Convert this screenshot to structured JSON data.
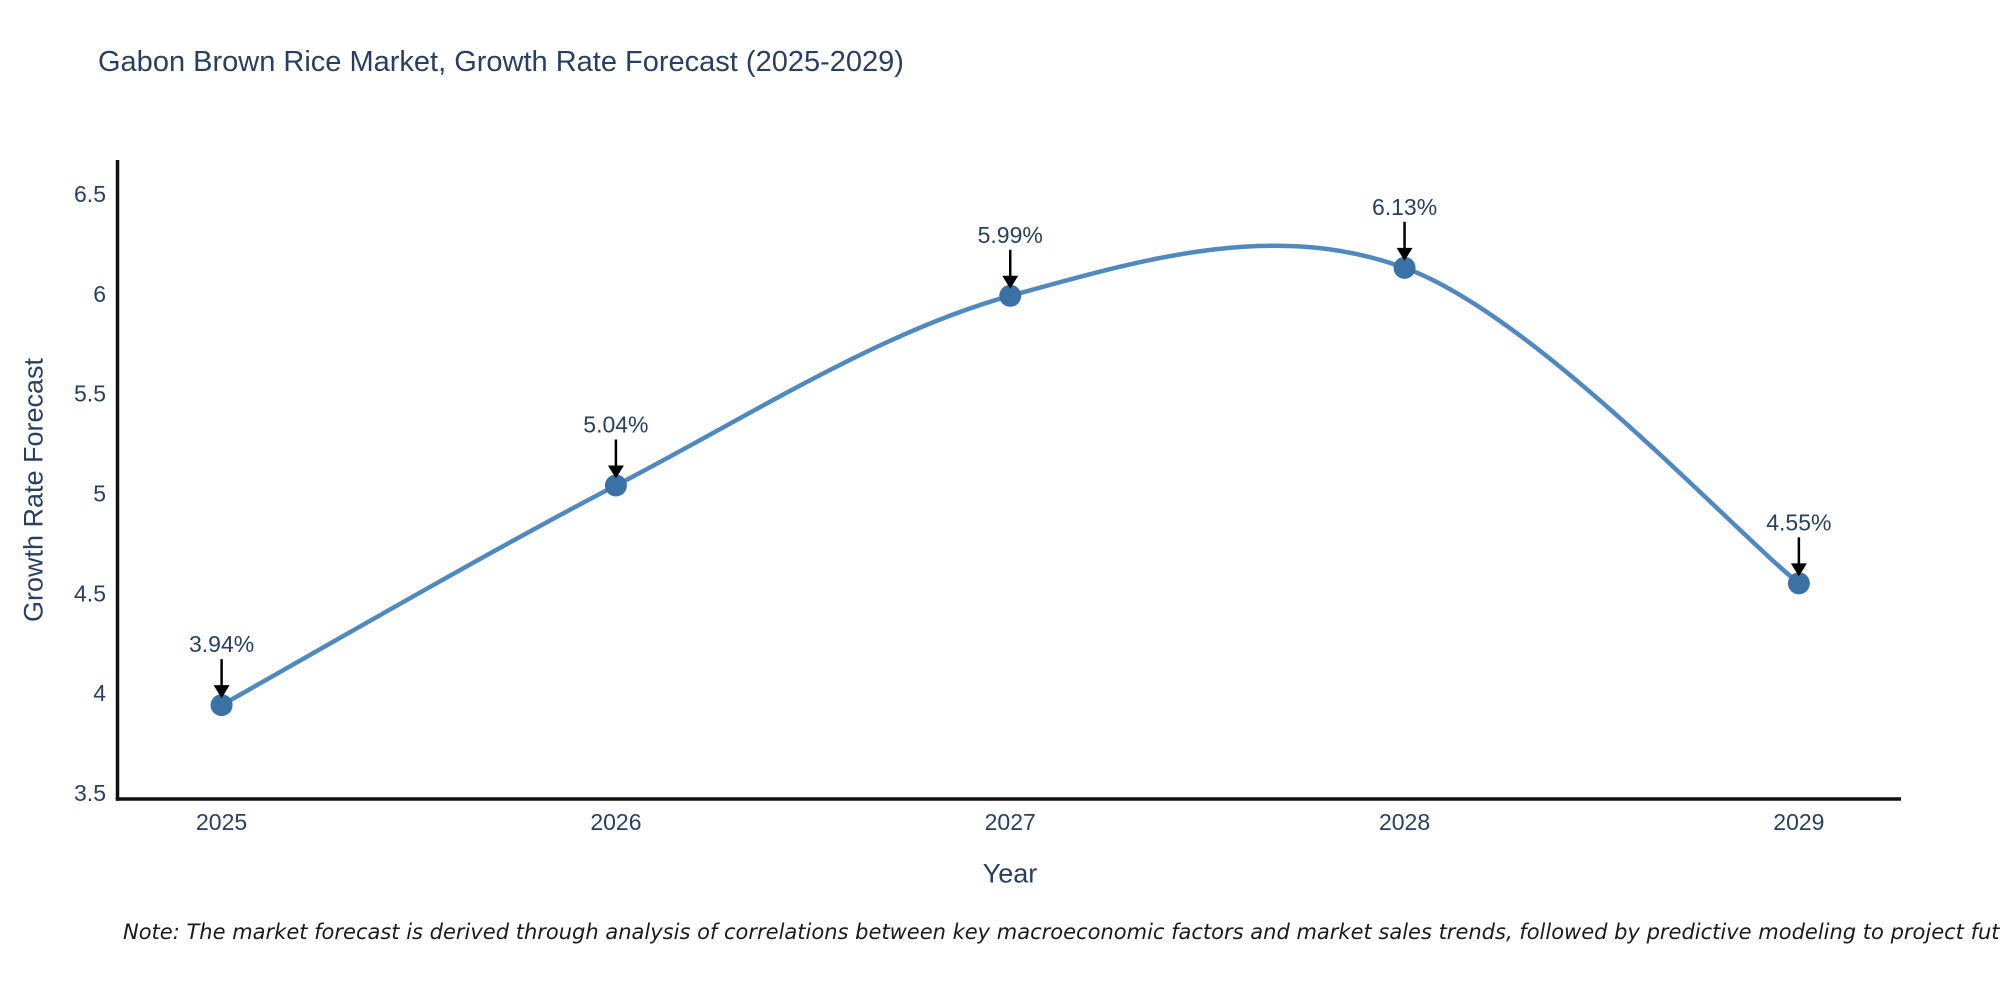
{
  "footnote": {
    "text": "Note: The market forecast is derived through analysis of correlations between key macroeconomic factors and market sales trends, followed by predictive modeling to project future sales"
  },
  "chart_data": {
    "type": "line",
    "title": "Gabon Brown Rice Market, Growth Rate Forecast (2025-2029)",
    "xlabel": "Year",
    "ylabel": "Growth Rate Forecast",
    "x": [
      2025,
      2026,
      2027,
      2028,
      2029
    ],
    "y": [
      3.94,
      5.04,
      5.99,
      6.13,
      4.55
    ],
    "point_labels": [
      "3.94%",
      "5.04%",
      "5.99%",
      "6.13%",
      "4.55%"
    ],
    "xtick_labels": [
      "2025",
      "2026",
      "2027",
      "2028",
      "2029"
    ],
    "yticks": [
      3.5,
      4,
      4.5,
      5,
      5.5,
      6,
      6.5
    ],
    "ytick_labels": [
      "3.5",
      "4",
      "4.5",
      "5",
      "5.5",
      "6",
      "6.5"
    ],
    "xlim": [
      2024.736,
      2029.259
    ],
    "ylim": [
      3.47,
      6.67
    ],
    "line_shape": "spline",
    "grid": false,
    "legend": false,
    "background": "#ffffff",
    "colors": {
      "line": "#5089bd",
      "marker": "#3b72a6",
      "axis": "#111111",
      "arrow": "#000000",
      "text": "#2a3f5f"
    }
  }
}
